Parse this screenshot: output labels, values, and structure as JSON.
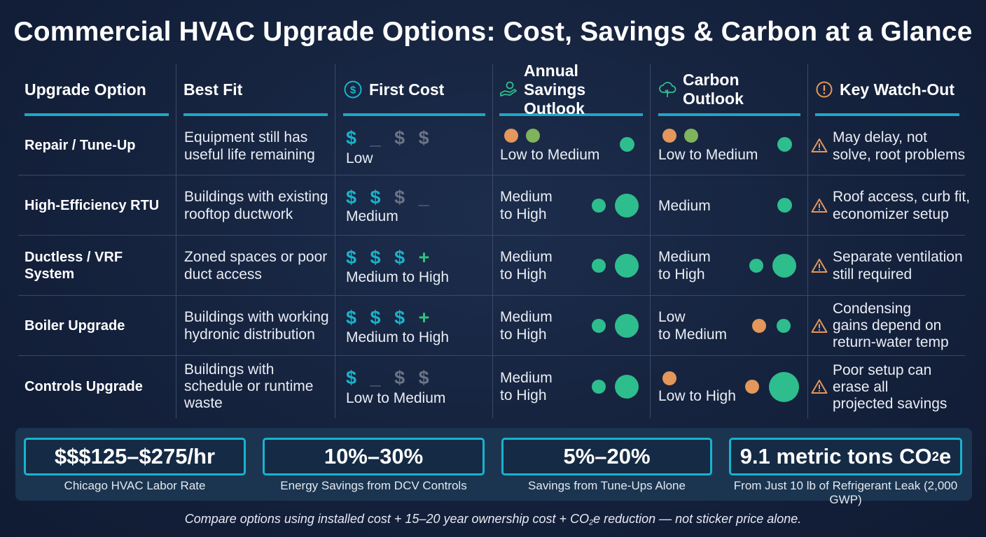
{
  "title": "Commercial HVAC Upgrade Options: Cost, Savings & Carbon at a Glance",
  "headers": {
    "option": "Upgrade Option",
    "best_fit": "Best Fit",
    "first_cost": "First Cost",
    "savings_l1": "Annual Savings",
    "savings_l2": "Outlook",
    "carbon": "Carbon Outlook",
    "watch": "Key Watch-Out"
  },
  "rows": [
    {
      "option": "Repair / Tune-Up",
      "fit_l1": "Equipment still has",
      "fit_l2": "useful life remaining",
      "fit_l3": "",
      "dollars": "$ _ $ $",
      "cost": "Low",
      "sav_l1": "Low to Medium",
      "sav_l2": "",
      "carb_l1": "Low to Medium",
      "carb_l2": "",
      "warn_l1": "May delay, not",
      "warn_l2": "solve, root problems",
      "warn_l3": ""
    },
    {
      "option": "High-Efficiency RTU",
      "fit_l1": "Buildings with existing",
      "fit_l2": "rooftop ductwork",
      "fit_l3": "",
      "dollars": "$ $ $ _",
      "cost": "Medium",
      "sav_l1": "Medium",
      "sav_l2": "to High",
      "carb_l1": "Medium",
      "carb_l2": "",
      "warn_l1": "Roof access, curb fit,",
      "warn_l2": "economizer setup",
      "warn_l3": ""
    },
    {
      "option_l1": "Ductless / VRF",
      "option_l2": "System",
      "fit_l1": "Zoned spaces or poor",
      "fit_l2": "duct access",
      "fit_l3": "",
      "dollars": "$ $ $ +",
      "cost": "Medium to High",
      "sav_l1": "Medium",
      "sav_l2": "to High",
      "carb_l1": "Medium",
      "carb_l2": "to High",
      "warn_l1": "Separate ventilation",
      "warn_l2": "still required",
      "warn_l3": ""
    },
    {
      "option": "Boiler Upgrade",
      "fit_l1": "Buildings with working",
      "fit_l2": "hydronic distribution",
      "fit_l3": "",
      "dollars": "$ $ $ +",
      "cost": "Medium to High",
      "sav_l1": "Medium",
      "sav_l2": "to High",
      "carb_l1": "Low",
      "carb_l2": "to Medium",
      "warn_l1": "Condensing",
      "warn_l2": "gains depend on",
      "warn_l3": "return-water temp"
    },
    {
      "option": "Controls Upgrade",
      "fit_l1": "Buildings with",
      "fit_l2": "schedule or runtime",
      "fit_l3": "waste",
      "dollars": "$ _ $ $",
      "cost": "Low to Medium",
      "sav_l1": "Medium",
      "sav_l2": "to High",
      "carb_l1": "Low to High",
      "carb_l2": "",
      "warn_l1": "Poor setup can",
      "warn_l2": "erase all",
      "warn_l3": "projected savings"
    }
  ],
  "stats": [
    {
      "value": "$$$125–$275/hr",
      "caption": "Chicago HVAC Labor Rate"
    },
    {
      "value": "10%–30%",
      "caption": "Energy Savings from DCV Controls"
    },
    {
      "value": "5%–20%",
      "caption": "Savings from Tune-Ups Alone"
    },
    {
      "value_main": "9.1 metric tons CO",
      "value_sub": "2",
      "value_tail": "e",
      "caption": "From Just 10 lb of Refrigerant Leak (2,000 GWP)"
    }
  ],
  "footer": {
    "pre": "Compare options using installed cost + 15–20 year ownership cost + CO",
    "sub": "2",
    "post": "e reduction — not sticker price alone."
  },
  "colors": {
    "accent": "#1ab3c9",
    "green": "#2ebd8d",
    "orange": "#e3975a",
    "warning": "#e3975a",
    "background": "#15223d"
  },
  "icons": {
    "first_cost": "dollar-circle-icon",
    "savings": "hand-money-icon",
    "carbon": "cloud-leaf-icon",
    "watch": "exclamation-circle-icon",
    "row_warning": "warning-triangle-icon"
  }
}
